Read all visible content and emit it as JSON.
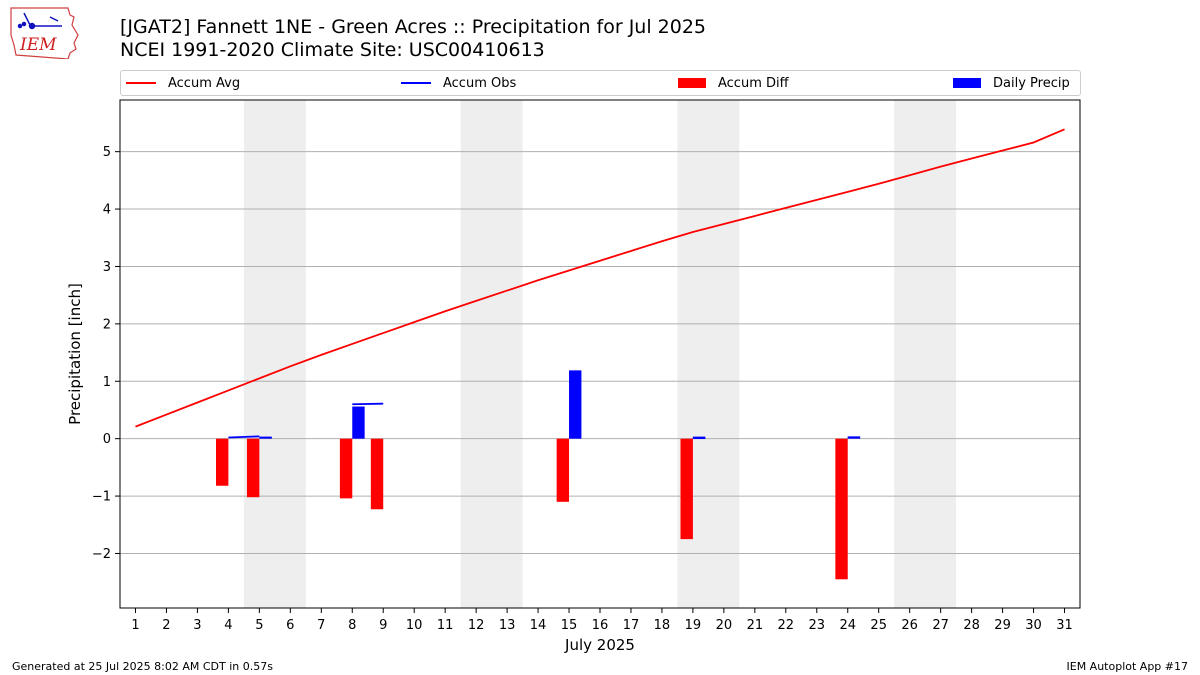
{
  "logo_text": "IEM",
  "title_line1": "[JGAT2] Fannett 1NE - Green Acres :: Precipitation for Jul 2025",
  "title_line2": "NCEI 1991-2020 Climate Site: USC00410613",
  "footer_left": "Generated at 25 Jul 2025 8:02 AM CDT in 0.57s",
  "footer_right": "IEM Autoplot App #17",
  "colors": {
    "avg": "#ff0000",
    "obs": "#0000ff",
    "diff": "#ff0000",
    "daily": "#0000ff",
    "weekend": "#eeeeee",
    "grid": "#b0b0b0"
  },
  "legend": [
    {
      "label": "Accum Avg",
      "kind": "line",
      "color": "#ff0000"
    },
    {
      "label": "Accum Obs",
      "kind": "line",
      "color": "#0000ff"
    },
    {
      "label": "Accum Diff",
      "kind": "box",
      "color": "#ff0000"
    },
    {
      "label": "Daily Precip",
      "kind": "box",
      "color": "#0000ff"
    }
  ],
  "chart_data": {
    "type": "bar",
    "xlabel": "July 2025",
    "ylabel": "Precipitation [inch]",
    "ylim": [
      -2.95,
      5.9
    ],
    "xlim": [
      0.5,
      31.5
    ],
    "yticks": [
      -2,
      -1,
      0,
      1,
      2,
      3,
      4,
      5
    ],
    "grid": true,
    "legend_position": "top",
    "days": [
      1,
      2,
      3,
      4,
      5,
      6,
      7,
      8,
      9,
      10,
      11,
      12,
      13,
      14,
      15,
      16,
      17,
      18,
      19,
      20,
      21,
      22,
      23,
      24,
      25,
      26,
      27,
      28,
      29,
      30,
      31
    ],
    "weekend_spans": [
      [
        4.5,
        6.5
      ],
      [
        11.5,
        13.5
      ],
      [
        18.5,
        20.5
      ],
      [
        25.5,
        27.5
      ]
    ],
    "accum_avg": [
      0.21,
      0.42,
      0.63,
      0.84,
      1.05,
      1.26,
      1.46,
      1.65,
      1.84,
      2.03,
      2.22,
      2.4,
      2.58,
      2.76,
      2.93,
      3.1,
      3.27,
      3.44,
      3.6,
      3.74,
      3.88,
      4.02,
      4.16,
      4.3,
      4.44,
      4.59,
      4.74,
      4.88,
      5.02,
      5.16,
      5.39
    ],
    "accum_obs_segments": [
      {
        "days": [
          4,
          5
        ],
        "values": [
          0.02,
          0.04
        ]
      },
      {
        "days": [
          5,
          5.4
        ],
        "values": [
          0.02,
          0.02
        ]
      },
      {
        "days": [
          8,
          9
        ],
        "values": [
          0.6,
          0.61
        ]
      },
      {
        "days": [
          19,
          19.4
        ],
        "values": [
          0.02,
          0.02
        ]
      },
      {
        "days": [
          24,
          24.4
        ],
        "values": [
          0.02,
          0.02
        ]
      }
    ],
    "accum_diff": [
      {
        "day": 4,
        "value": -0.82
      },
      {
        "day": 5,
        "value": -1.02
      },
      {
        "day": 8,
        "value": -1.04
      },
      {
        "day": 9,
        "value": -1.23
      },
      {
        "day": 15,
        "value": -1.1
      },
      {
        "day": 19,
        "value": -1.75
      },
      {
        "day": 24,
        "value": -2.45
      }
    ],
    "daily_precip": [
      {
        "day": 5,
        "value": 0.03
      },
      {
        "day": 8,
        "value": 0.56
      },
      {
        "day": 15,
        "value": 1.19
      },
      {
        "day": 19,
        "value": 0.02
      },
      {
        "day": 24,
        "value": 0.04
      }
    ]
  }
}
